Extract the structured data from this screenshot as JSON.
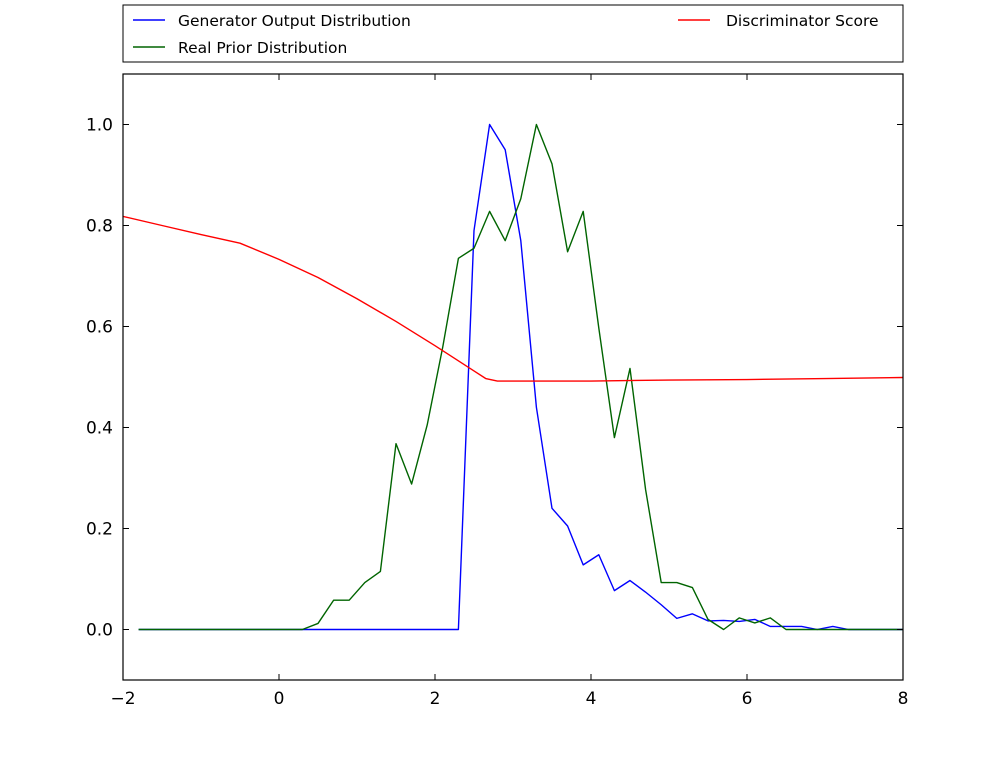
{
  "chart_data": {
    "type": "line",
    "title": "",
    "xlabel": "",
    "ylabel": "",
    "xlim": [
      -2,
      8
    ],
    "ylim": [
      -0.1,
      1.1
    ],
    "xticks": [
      "−2",
      "0",
      "2",
      "4",
      "6",
      "8"
    ],
    "yticks": [
      "0.0",
      "0.2",
      "0.4",
      "0.6",
      "0.8",
      "1.0"
    ],
    "grid": false,
    "legend_position": "top, above plot",
    "legend_columns": [
      [
        "Generator Output Distribution",
        "Real Prior Distribution"
      ],
      [
        "Discriminator Score"
      ]
    ],
    "series": [
      {
        "name": "Generator Output Distribution",
        "color": "#0000ff",
        "x": [
          -1.8,
          0.3,
          2.3,
          2.5,
          2.7,
          2.9,
          3.1,
          3.3,
          3.5,
          3.7,
          3.9,
          4.1,
          4.3,
          4.5,
          4.7,
          4.9,
          5.1,
          5.3,
          5.5,
          5.7,
          5.9,
          6.1,
          6.3,
          6.5,
          6.7,
          6.9,
          7.1,
          7.3,
          7.5,
          8.0
        ],
        "y": [
          0.0,
          0.0,
          0.0,
          0.79,
          1.0,
          0.95,
          0.77,
          0.44,
          0.24,
          0.205,
          0.128,
          0.148,
          0.077,
          0.097,
          0.074,
          0.049,
          0.022,
          0.031,
          0.017,
          0.018,
          0.016,
          0.02,
          0.006,
          0.006,
          0.006,
          0.0,
          0.006,
          0.0,
          0.0,
          0.0
        ]
      },
      {
        "name": "Real Prior Distribution",
        "color": "#006400",
        "x": [
          -1.8,
          0.3,
          0.5,
          0.7,
          0.9,
          1.1,
          1.3,
          1.5,
          1.7,
          1.9,
          2.1,
          2.3,
          2.5,
          2.7,
          2.9,
          3.1,
          3.3,
          3.5,
          3.7,
          3.9,
          4.1,
          4.3,
          4.5,
          4.7,
          4.9,
          5.1,
          5.3,
          5.5,
          5.7,
          5.9,
          6.1,
          6.3,
          6.5,
          6.7,
          6.9,
          7.1,
          7.3,
          7.5,
          8.0
        ],
        "y": [
          0.0,
          0.0,
          0.012,
          0.058,
          0.058,
          0.093,
          0.115,
          0.368,
          0.288,
          0.405,
          0.56,
          0.735,
          0.755,
          0.828,
          0.77,
          0.853,
          1.0,
          0.922,
          0.748,
          0.828,
          0.597,
          0.38,
          0.517,
          0.277,
          0.093,
          0.093,
          0.083,
          0.02,
          0.0,
          0.023,
          0.013,
          0.023,
          0.0,
          0.0,
          0.0,
          0.0,
          0.0,
          0.0,
          0.0
        ]
      },
      {
        "name": "Discriminator Score",
        "color": "#ff0000",
        "x": [
          -2.0,
          -1.5,
          -1.0,
          -0.5,
          0.0,
          0.5,
          1.0,
          1.5,
          2.0,
          2.5,
          2.65,
          2.8,
          3.0,
          3.5,
          4.0,
          5.0,
          6.0,
          7.0,
          8.0
        ],
        "y": [
          0.818,
          0.8,
          0.782,
          0.765,
          0.733,
          0.697,
          0.655,
          0.61,
          0.562,
          0.512,
          0.497,
          0.492,
          0.492,
          0.492,
          0.492,
          0.494,
          0.495,
          0.497,
          0.499
        ]
      }
    ]
  }
}
